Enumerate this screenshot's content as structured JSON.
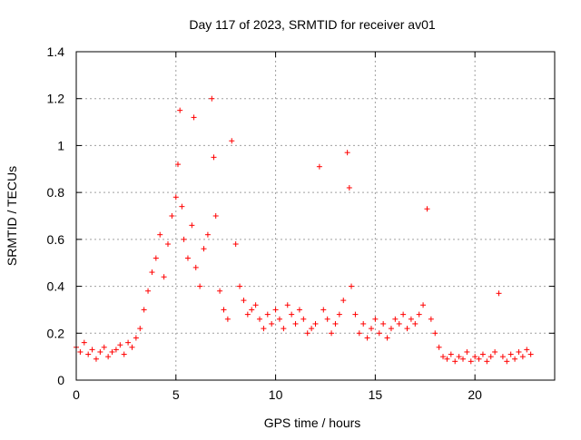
{
  "chart_data": {
    "type": "scatter",
    "title": "Day 117 of 2023, SRMTID for receiver av01",
    "xlabel": "GPS time / hours",
    "ylabel": "SRMTID / TECUs",
    "xlim": [
      0,
      24
    ],
    "ylim": [
      0,
      1.4
    ],
    "x_ticks": [
      0,
      5,
      10,
      15,
      20
    ],
    "x_tick_labels": [
      "0",
      "5",
      "10",
      "15",
      "20"
    ],
    "y_ticks": [
      0,
      0.2,
      0.4,
      0.6,
      0.8,
      1,
      1.2,
      1.4
    ],
    "y_tick_labels": [
      "0",
      "0.2",
      "0.4",
      "0.6",
      "0.8",
      "1",
      "1.2",
      "1.4"
    ],
    "grid": true,
    "marker": "+",
    "series": [
      {
        "name": "av01",
        "color": "#ff0000",
        "x": [
          0.0,
          0.2,
          0.4,
          0.6,
          0.8,
          1.0,
          1.2,
          1.4,
          1.6,
          1.8,
          2.0,
          2.2,
          2.4,
          2.6,
          2.8,
          3.0,
          3.2,
          3.4,
          3.6,
          3.8,
          4.0,
          4.2,
          4.4,
          4.6,
          4.8,
          5.0,
          5.1,
          5.2,
          5.3,
          5.4,
          5.6,
          5.8,
          5.9,
          6.0,
          6.2,
          6.4,
          6.6,
          6.8,
          6.9,
          7.0,
          7.2,
          7.4,
          7.6,
          7.8,
          8.0,
          8.2,
          8.4,
          8.6,
          8.8,
          9.0,
          9.2,
          9.4,
          9.6,
          9.8,
          10.0,
          10.2,
          10.4,
          10.6,
          10.8,
          11.0,
          11.2,
          11.4,
          11.6,
          11.8,
          12.0,
          12.2,
          12.4,
          12.6,
          12.8,
          13.0,
          13.2,
          13.4,
          13.6,
          13.7,
          13.8,
          14.0,
          14.2,
          14.4,
          14.6,
          14.8,
          15.0,
          15.2,
          15.4,
          15.6,
          15.8,
          16.0,
          16.2,
          16.4,
          16.6,
          16.8,
          17.0,
          17.2,
          17.4,
          17.6,
          17.8,
          18.0,
          18.2,
          18.4,
          18.6,
          18.8,
          19.0,
          19.2,
          19.4,
          19.6,
          19.8,
          20.0,
          20.2,
          20.4,
          20.6,
          20.8,
          21.0,
          21.2,
          21.4,
          21.6,
          21.8,
          22.0,
          22.2,
          22.4,
          22.6,
          22.8
        ],
        "y": [
          0.14,
          0.12,
          0.16,
          0.11,
          0.13,
          0.09,
          0.12,
          0.14,
          0.1,
          0.12,
          0.13,
          0.15,
          0.11,
          0.16,
          0.14,
          0.18,
          0.22,
          0.3,
          0.38,
          0.46,
          0.52,
          0.62,
          0.44,
          0.58,
          0.7,
          0.78,
          0.92,
          1.15,
          0.74,
          0.6,
          0.52,
          0.66,
          1.12,
          0.48,
          0.4,
          0.56,
          0.62,
          1.2,
          0.95,
          0.7,
          0.38,
          0.3,
          0.26,
          1.02,
          0.58,
          0.4,
          0.34,
          0.28,
          0.3,
          0.32,
          0.26,
          0.22,
          0.28,
          0.24,
          0.3,
          0.26,
          0.22,
          0.32,
          0.28,
          0.24,
          0.3,
          0.26,
          0.2,
          0.22,
          0.24,
          0.91,
          0.3,
          0.26,
          0.2,
          0.24,
          0.28,
          0.34,
          0.97,
          0.82,
          0.4,
          0.28,
          0.2,
          0.24,
          0.18,
          0.22,
          0.26,
          0.2,
          0.24,
          0.18,
          0.22,
          0.26,
          0.24,
          0.28,
          0.22,
          0.26,
          0.24,
          0.28,
          0.32,
          0.73,
          0.26,
          0.2,
          0.14,
          0.1,
          0.09,
          0.11,
          0.08,
          0.1,
          0.09,
          0.12,
          0.08,
          0.1,
          0.09,
          0.11,
          0.08,
          0.1,
          0.12,
          0.37,
          0.1,
          0.08,
          0.11,
          0.09,
          0.12,
          0.1,
          0.13,
          0.11
        ]
      }
    ]
  }
}
